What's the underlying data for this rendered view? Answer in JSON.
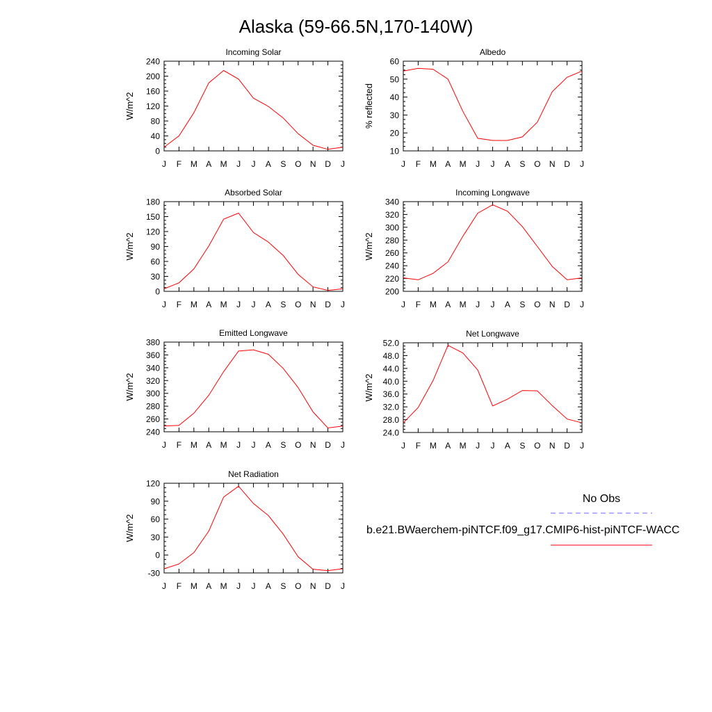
{
  "title": "Alaska (59-66.5N,170-140W)",
  "months": [
    "J",
    "F",
    "M",
    "A",
    "M",
    "J",
    "J",
    "A",
    "S",
    "O",
    "N",
    "D",
    "J"
  ],
  "legend": {
    "obs_label": "No Obs",
    "obs_color": "#6666ff",
    "model_label": "b.e21.BWaerchem-piNTCF.f09_g17.CMIP6-hist-piNTCF-WACC",
    "model_color": "#ff0000"
  },
  "line_color": "#ff0000",
  "chart_data": [
    {
      "type": "line",
      "title": "Incoming Solar",
      "ylabel": "W/m^2",
      "ylim": [
        0,
        240
      ],
      "yticks": [
        0,
        40,
        80,
        120,
        160,
        200,
        240
      ],
      "ytick_labels": [
        "0",
        "40",
        "80",
        "120",
        "160",
        "200",
        "240"
      ],
      "series": [
        {
          "values": [
            10,
            40,
            102,
            182,
            215,
            192,
            141,
            119,
            88,
            46,
            15,
            4,
            10
          ]
        }
      ]
    },
    {
      "type": "line",
      "title": "Albedo",
      "ylabel": "% reflected",
      "ylim": [
        10,
        60
      ],
      "yticks": [
        10,
        20,
        30,
        40,
        50,
        60
      ],
      "ytick_labels": [
        "10",
        "20",
        "30",
        "40",
        "50",
        "60"
      ],
      "series": [
        {
          "values": [
            54.5,
            56,
            55.5,
            50,
            32,
            17,
            15.8,
            15.8,
            17.8,
            26,
            43,
            51,
            54.5
          ]
        }
      ]
    },
    {
      "type": "line",
      "title": "Absorbed Solar",
      "ylabel": "W/m^2",
      "ylim": [
        0,
        180
      ],
      "yticks": [
        0,
        30,
        60,
        90,
        120,
        150,
        180
      ],
      "ytick_labels": [
        "0",
        "30",
        "60",
        "90",
        "120",
        "150",
        "180"
      ],
      "series": [
        {
          "values": [
            5,
            17,
            45,
            91,
            145,
            157,
            118,
            99,
            72,
            34,
            9,
            2,
            5
          ]
        }
      ]
    },
    {
      "type": "line",
      "title": "Incoming Longwave",
      "ylabel": "W/m^2",
      "ylim": [
        200,
        340
      ],
      "yticks": [
        200,
        220,
        240,
        260,
        280,
        300,
        320,
        340
      ],
      "ytick_labels": [
        "200",
        "220",
        "240",
        "260",
        "280",
        "300",
        "320",
        "340"
      ],
      "series": [
        {
          "values": [
            221,
            218,
            228,
            246,
            286,
            322,
            335,
            325,
            301,
            270,
            239,
            218,
            221
          ]
        }
      ]
    },
    {
      "type": "line",
      "title": "Emitted Longwave",
      "ylabel": "W/m^2",
      "ylim": [
        240,
        380
      ],
      "yticks": [
        240,
        260,
        280,
        300,
        320,
        340,
        360,
        380
      ],
      "ytick_labels": [
        "240",
        "260",
        "280",
        "300",
        "320",
        "340",
        "360",
        "380"
      ],
      "series": [
        {
          "values": [
            249,
            250,
            269,
            297,
            334,
            366,
            368,
            361,
            339,
            309,
            271,
            246,
            249
          ]
        }
      ]
    },
    {
      "type": "line",
      "title": "Net Longwave",
      "ylabel": "W/m^2",
      "ylim": [
        24,
        52
      ],
      "yticks": [
        24,
        28,
        32,
        36,
        40,
        44,
        48,
        52
      ],
      "ytick_labels": [
        "24.0",
        "28.0",
        "32.0",
        "36.0",
        "40.0",
        "44.0",
        "48.0",
        "52.0"
      ],
      "series": [
        {
          "values": [
            27,
            31.8,
            40.2,
            51.2,
            48.8,
            43.5,
            32.3,
            34.4,
            37.1,
            37,
            32.4,
            28.2,
            27
          ]
        }
      ]
    },
    {
      "type": "line",
      "title": "Net Radiation",
      "ylabel": "W/m^2",
      "ylim": [
        -30,
        120
      ],
      "yticks": [
        -30,
        0,
        30,
        60,
        90,
        120
      ],
      "ytick_labels": [
        "-30",
        "0",
        "30",
        "60",
        "90",
        "120"
      ],
      "series": [
        {
          "values": [
            -23,
            -15,
            4,
            40,
            97,
            115,
            86,
            66,
            35,
            -3,
            -24,
            -26,
            -23
          ]
        }
      ]
    }
  ]
}
